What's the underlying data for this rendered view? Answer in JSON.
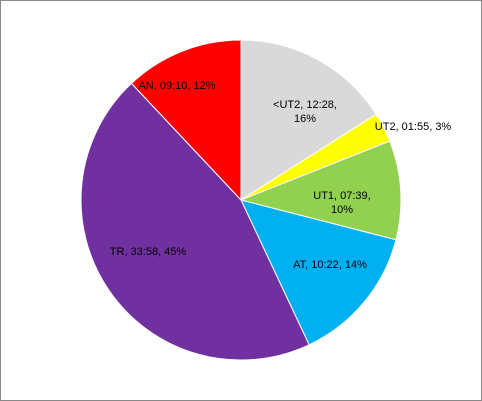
{
  "chart_data": {
    "type": "pie",
    "values": [
      16,
      3,
      10,
      14,
      45,
      12
    ],
    "value_labels": [
      [
        "<UT2, 12:28,",
        "16%"
      ],
      [
        "UT2, 01:55, 3%"
      ],
      [
        "UT1, 07:39,",
        "10%"
      ],
      [
        "AT, 10:22, 14%"
      ],
      [
        "TR, 33:58, 45%"
      ],
      [
        "AN, 09:10, 12%"
      ]
    ],
    "colors": [
      "#d9d9d9",
      "#ffff00",
      "#92d050",
      "#00b0f0",
      "#7030a0",
      "#ff0000"
    ]
  }
}
